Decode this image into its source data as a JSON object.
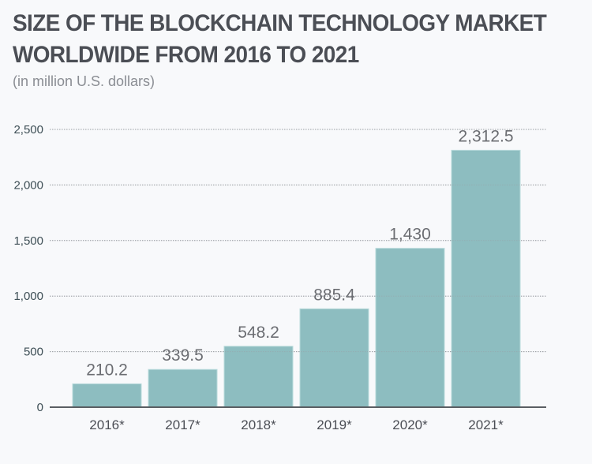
{
  "chart_data": {
    "type": "bar",
    "title_line1": "SIZE OF THE BLOCKCHAIN TECHNOLOGY MARKET",
    "title_line2": "WORLDWIDE FROM 2016 TO 2021",
    "subtitle": "(in million U.S. dollars)",
    "xlabel": "",
    "ylabel": "",
    "categories": [
      "2016*",
      "2017*",
      "2018*",
      "2019*",
      "2020*",
      "2021*"
    ],
    "values": [
      210.2,
      339.5,
      548.2,
      885.4,
      1430,
      2312.5
    ],
    "value_labels": [
      "210.2",
      "339.5",
      "548.2",
      "885.4",
      "1,430",
      "2,312.5"
    ],
    "ylim": [
      0,
      2500
    ],
    "yticks": [
      0,
      500,
      1000,
      1500,
      2000,
      2500
    ],
    "ytick_labels": [
      "0",
      "500",
      "1,000",
      "1,500",
      "2,000",
      "2,500"
    ],
    "grid": true,
    "legend": "none",
    "colors": {
      "bar": "#8dbdc0",
      "bar_edge": "#b9dadb",
      "grid": "#9a9ea3",
      "axis": "#5a5e63"
    }
  }
}
